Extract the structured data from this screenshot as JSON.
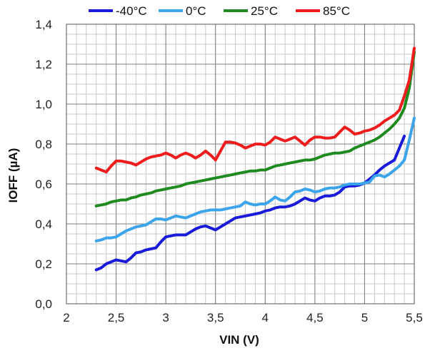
{
  "chart_data": {
    "type": "line",
    "xlabel": "VIN (V)",
    "ylabel": "IOFF (µA)",
    "xlim": [
      2,
      5.5
    ],
    "ylim": [
      0,
      1.4
    ],
    "x_ticks": [
      "2",
      "2,5",
      "3",
      "3,5",
      "4",
      "4,5",
      "5",
      "5,5"
    ],
    "y_ticks": [
      "0,0",
      "0,2",
      "0,4",
      "0,6",
      "0,8",
      "1,0",
      "1,2",
      "1,4"
    ],
    "grid": true,
    "legend_position": "top",
    "series": [
      {
        "name": "-40°C",
        "color": "#1a1adb",
        "x": [
          2.3,
          2.35,
          2.4,
          2.45,
          2.5,
          2.55,
          2.6,
          2.65,
          2.7,
          2.75,
          2.8,
          2.85,
          2.9,
          2.95,
          3.0,
          3.05,
          3.1,
          3.15,
          3.2,
          3.25,
          3.3,
          3.35,
          3.4,
          3.45,
          3.5,
          3.55,
          3.6,
          3.65,
          3.7,
          3.75,
          3.8,
          3.85,
          3.9,
          3.95,
          4.0,
          4.05,
          4.1,
          4.15,
          4.2,
          4.25,
          4.3,
          4.35,
          4.4,
          4.45,
          4.5,
          4.55,
          4.6,
          4.65,
          4.7,
          4.75,
          4.8,
          4.85,
          4.9,
          4.95,
          5.0,
          5.05,
          5.1,
          5.15,
          5.2,
          5.25,
          5.3,
          5.35,
          5.4
        ],
        "values": [
          0.17,
          0.18,
          0.2,
          0.21,
          0.22,
          0.215,
          0.21,
          0.23,
          0.255,
          0.26,
          0.27,
          0.275,
          0.28,
          0.31,
          0.335,
          0.34,
          0.345,
          0.345,
          0.345,
          0.36,
          0.375,
          0.385,
          0.39,
          0.38,
          0.37,
          0.385,
          0.4,
          0.415,
          0.43,
          0.435,
          0.44,
          0.445,
          0.45,
          0.455,
          0.465,
          0.47,
          0.48,
          0.485,
          0.485,
          0.49,
          0.5,
          0.515,
          0.53,
          0.52,
          0.515,
          0.53,
          0.54,
          0.54,
          0.545,
          0.56,
          0.585,
          0.59,
          0.59,
          0.595,
          0.605,
          0.625,
          0.645,
          0.67,
          0.69,
          0.705,
          0.72,
          0.78,
          0.84
        ]
      },
      {
        "name": "0°C",
        "color": "#3ba4ea",
        "x": [
          2.3,
          2.35,
          2.4,
          2.45,
          2.5,
          2.55,
          2.6,
          2.65,
          2.7,
          2.75,
          2.8,
          2.85,
          2.9,
          2.95,
          3.0,
          3.05,
          3.1,
          3.15,
          3.2,
          3.25,
          3.3,
          3.35,
          3.4,
          3.45,
          3.5,
          3.55,
          3.6,
          3.65,
          3.7,
          3.75,
          3.8,
          3.85,
          3.9,
          3.95,
          4.0,
          4.05,
          4.1,
          4.15,
          4.2,
          4.25,
          4.3,
          4.35,
          4.4,
          4.45,
          4.5,
          4.55,
          4.6,
          4.65,
          4.7,
          4.75,
          4.8,
          4.85,
          4.9,
          4.95,
          5.0,
          5.05,
          5.1,
          5.15,
          5.2,
          5.25,
          5.3,
          5.35,
          5.4,
          5.45,
          5.5
        ],
        "values": [
          0.315,
          0.32,
          0.33,
          0.33,
          0.335,
          0.35,
          0.365,
          0.375,
          0.385,
          0.39,
          0.395,
          0.41,
          0.425,
          0.425,
          0.42,
          0.43,
          0.44,
          0.435,
          0.43,
          0.44,
          0.45,
          0.46,
          0.465,
          0.47,
          0.47,
          0.47,
          0.475,
          0.48,
          0.485,
          0.49,
          0.51,
          0.5,
          0.495,
          0.5,
          0.5,
          0.515,
          0.535,
          0.52,
          0.515,
          0.535,
          0.56,
          0.565,
          0.575,
          0.57,
          0.56,
          0.565,
          0.575,
          0.58,
          0.58,
          0.585,
          0.595,
          0.6,
          0.6,
          0.6,
          0.605,
          0.61,
          0.64,
          0.645,
          0.635,
          0.65,
          0.67,
          0.69,
          0.72,
          0.82,
          0.93
        ]
      },
      {
        "name": "25°C",
        "color": "#1f8a1f",
        "x": [
          2.3,
          2.35,
          2.4,
          2.45,
          2.5,
          2.55,
          2.6,
          2.65,
          2.7,
          2.75,
          2.8,
          2.85,
          2.9,
          2.95,
          3.0,
          3.05,
          3.1,
          3.15,
          3.2,
          3.25,
          3.3,
          3.35,
          3.4,
          3.45,
          3.5,
          3.55,
          3.6,
          3.65,
          3.7,
          3.75,
          3.8,
          3.85,
          3.9,
          3.95,
          4.0,
          4.05,
          4.1,
          4.15,
          4.2,
          4.25,
          4.3,
          4.35,
          4.4,
          4.45,
          4.5,
          4.55,
          4.6,
          4.65,
          4.7,
          4.75,
          4.8,
          4.85,
          4.9,
          4.95,
          5.0,
          5.05,
          5.1,
          5.15,
          5.2,
          5.25,
          5.3,
          5.35,
          5.4,
          5.45,
          5.5
        ],
        "values": [
          0.49,
          0.495,
          0.5,
          0.51,
          0.515,
          0.52,
          0.52,
          0.53,
          0.535,
          0.545,
          0.55,
          0.555,
          0.565,
          0.57,
          0.575,
          0.58,
          0.585,
          0.59,
          0.6,
          0.605,
          0.61,
          0.615,
          0.62,
          0.625,
          0.63,
          0.635,
          0.64,
          0.645,
          0.65,
          0.655,
          0.66,
          0.665,
          0.665,
          0.67,
          0.67,
          0.68,
          0.69,
          0.695,
          0.7,
          0.705,
          0.71,
          0.715,
          0.72,
          0.72,
          0.725,
          0.735,
          0.745,
          0.75,
          0.755,
          0.755,
          0.76,
          0.765,
          0.78,
          0.79,
          0.8,
          0.81,
          0.82,
          0.835,
          0.855,
          0.875,
          0.9,
          0.93,
          0.98,
          1.08,
          1.26
        ]
      },
      {
        "name": "85°C",
        "color": "#ee1c1c",
        "x": [
          2.3,
          2.35,
          2.4,
          2.45,
          2.5,
          2.55,
          2.6,
          2.65,
          2.7,
          2.75,
          2.8,
          2.85,
          2.9,
          2.95,
          3.0,
          3.05,
          3.1,
          3.15,
          3.2,
          3.25,
          3.3,
          3.35,
          3.4,
          3.45,
          3.5,
          3.55,
          3.6,
          3.65,
          3.7,
          3.75,
          3.8,
          3.85,
          3.9,
          3.95,
          4.0,
          4.05,
          4.1,
          4.15,
          4.2,
          4.25,
          4.3,
          4.35,
          4.4,
          4.45,
          4.5,
          4.55,
          4.6,
          4.65,
          4.7,
          4.75,
          4.8,
          4.85,
          4.9,
          4.95,
          5.0,
          5.05,
          5.1,
          5.15,
          5.2,
          5.25,
          5.3,
          5.35,
          5.4,
          5.45,
          5.5
        ],
        "values": [
          0.68,
          0.67,
          0.66,
          0.69,
          0.715,
          0.715,
          0.71,
          0.705,
          0.695,
          0.71,
          0.725,
          0.735,
          0.74,
          0.745,
          0.755,
          0.745,
          0.73,
          0.745,
          0.755,
          0.745,
          0.73,
          0.745,
          0.765,
          0.745,
          0.72,
          0.765,
          0.81,
          0.81,
          0.805,
          0.795,
          0.78,
          0.79,
          0.8,
          0.8,
          0.795,
          0.81,
          0.835,
          0.825,
          0.815,
          0.825,
          0.835,
          0.815,
          0.795,
          0.82,
          0.835,
          0.835,
          0.83,
          0.83,
          0.835,
          0.86,
          0.885,
          0.87,
          0.85,
          0.855,
          0.865,
          0.87,
          0.88,
          0.895,
          0.915,
          0.93,
          0.945,
          0.97,
          1.04,
          1.12,
          1.28
        ]
      }
    ]
  }
}
